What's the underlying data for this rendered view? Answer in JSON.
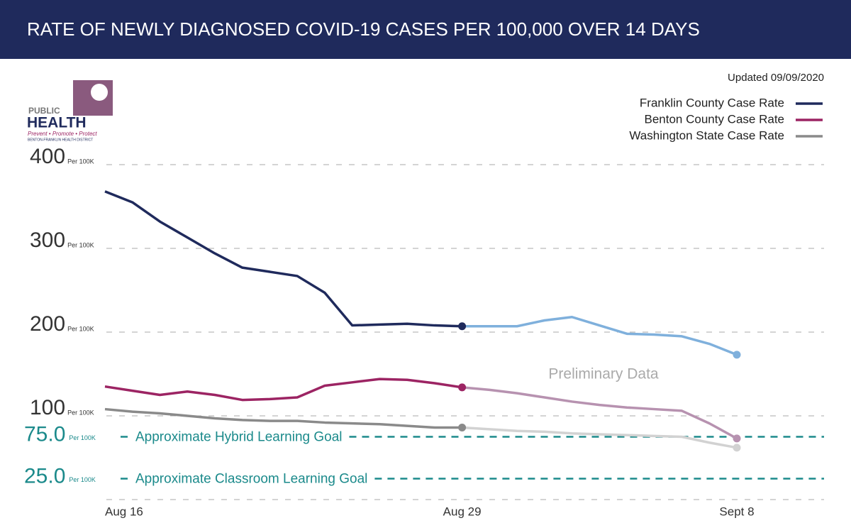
{
  "chart_data": {
    "type": "line",
    "title": "RATE OF NEWLY DIAGNOSED COVID-19 CASES PER 100,000 OVER 14 DAYS",
    "subtitle": "Updated 09/09/2020",
    "categories": [
      "Aug 16",
      null,
      null,
      null,
      null,
      null,
      null,
      null,
      null,
      null,
      null,
      null,
      null,
      "Aug 29",
      null,
      null,
      null,
      null,
      null,
      null,
      null,
      null,
      null,
      "Sept 8"
    ],
    "series": [
      {
        "name": "Franklin County Case Rate",
        "color": "#1f2a5c",
        "preliminary_color": "#7fb0dc",
        "values": [
          368,
          355,
          332,
          313,
          294,
          277,
          272,
          267,
          247,
          208,
          209,
          210,
          208,
          207,
          207,
          207,
          214,
          218,
          208,
          198,
          197,
          195,
          186,
          173
        ]
      },
      {
        "name": "Benton County Case Rate",
        "color": "#9c2463",
        "preliminary_color": "#b792b0",
        "values": [
          135,
          130,
          125,
          129,
          125,
          119,
          120,
          122,
          136,
          140,
          144,
          143,
          139,
          134,
          131,
          127,
          122,
          117,
          113,
          110,
          108,
          106,
          91,
          73
        ]
      },
      {
        "name": "Washington State Case Rate",
        "color": "#8a8a8a",
        "preliminary_color": "#d2d2d2",
        "values": [
          108,
          105,
          103,
          100,
          97,
          95,
          94,
          94,
          92,
          91,
          90,
          88,
          86,
          86,
          84,
          82,
          81,
          79,
          78,
          77,
          76,
          75,
          68,
          62
        ]
      }
    ],
    "preliminary_from": 13,
    "annotation": "Preliminary Data",
    "ylim": [
      0,
      400
    ],
    "yticks": [
      100,
      200,
      300,
      400
    ],
    "tick_unit": "Per 100K",
    "goals": [
      {
        "value": {
          "value": 75,
          "label": "75.0"
        },
        "label": "Approximate Hybrid Learning Goal",
        "color": "#1b8a8b"
      },
      {
        "value": {
          "value": 25,
          "label": "25.0"
        },
        "label": "Approximate Classroom Learning Goal",
        "color": "#1b8a8b"
      }
    ],
    "grid": true,
    "legend": "upper right"
  },
  "logo": {
    "line1": "PUBLIC",
    "line2": "HEALTH",
    "tagline": "Prevent • Promote • Protect",
    "district": "BENTON-FRANKLIN HEALTH DISTRICT"
  }
}
